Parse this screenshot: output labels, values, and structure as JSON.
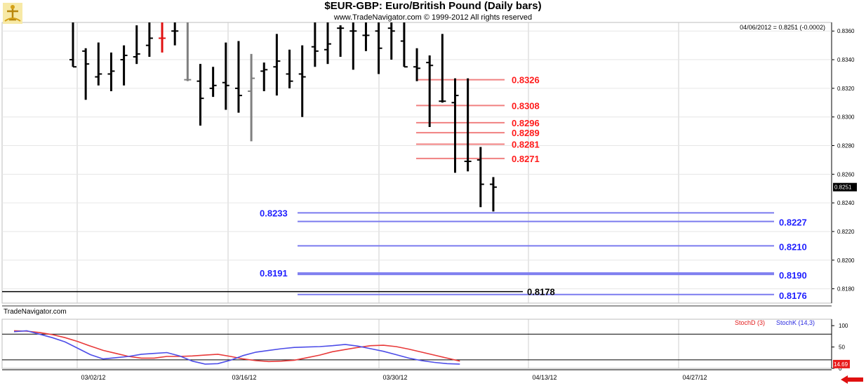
{
  "header": {
    "title": "$EUR-GBP:  Euro/British Pound  (Daily bars)",
    "copyright": "www.TradeNavigator.com © 1999-2012 All rights reserved",
    "last_info": "04/06/2012 = 0.8251 (-0.0002)",
    "watermark": "TradeNavigator.com"
  },
  "icons": {
    "logo": "trade-navigator-logo-icon",
    "scroll": "scroll-left-arrow-icon"
  },
  "colors": {
    "bar": "#000000",
    "bar_down": "#e01010",
    "bar_gray": "#7f7f7f",
    "red_level": "#f08080",
    "red_label": "#ff1a1a",
    "blue_level": "#7b7bef",
    "blue_label": "#1f1fff",
    "stoch_d": "#e83a3a",
    "stoch_k": "#4d4de8"
  },
  "chart_data": [
    {
      "type": "ohlc",
      "title": "$EUR-GBP:  Euro/British Pound  (Daily bars)",
      "x_ticks": [
        "03/02/12",
        "03/16/12",
        "03/30/12",
        "04/13/12",
        "04/27/12"
      ],
      "y_ticks": [
        "0.8360",
        "0.8340",
        "0.8320",
        "0.8300",
        "0.8280",
        "0.8260",
        "0.8240",
        "0.8220",
        "0.8200",
        "0.8180"
      ],
      "ylim": [
        0.817,
        0.8366
      ],
      "last_price_label": "0.8251",
      "bars": [
        {
          "high": 0.8366,
          "low": 0.8335,
          "open": 0.834,
          "close": 0.8335
        },
        {
          "high": 0.8348,
          "low": 0.8312,
          "open": 0.8346,
          "close": 0.8337
        },
        {
          "high": 0.8352,
          "low": 0.8322,
          "open": 0.8328,
          "close": 0.833
        },
        {
          "high": 0.8345,
          "low": 0.8318,
          "open": 0.833,
          "close": 0.8332
        },
        {
          "high": 0.835,
          "low": 0.8322,
          "open": 0.834,
          "close": 0.8343
        },
        {
          "high": 0.8364,
          "low": 0.8337,
          "open": 0.8342,
          "close": 0.8344
        },
        {
          "high": 0.8366,
          "low": 0.8342,
          "open": 0.835,
          "close": 0.8355
        },
        {
          "high": 0.8366,
          "low": 0.8345,
          "open": 0.8355,
          "close": 0.8355,
          "color": "down"
        },
        {
          "high": 0.8366,
          "low": 0.835,
          "open": 0.836,
          "close": 0.836
        },
        {
          "high": 0.8366,
          "low": 0.8325,
          "open": 0.8326,
          "close": 0.8326,
          "color": "gray"
        },
        {
          "high": 0.8337,
          "low": 0.8294,
          "open": 0.8325,
          "close": 0.8313
        },
        {
          "high": 0.8335,
          "low": 0.8314,
          "open": 0.832,
          "close": 0.8322
        },
        {
          "high": 0.8352,
          "low": 0.8305,
          "open": 0.8324,
          "close": 0.8322
        },
        {
          "high": 0.8353,
          "low": 0.8303,
          "open": 0.832,
          "close": 0.8315
        },
        {
          "high": 0.8344,
          "low": 0.8283,
          "open": 0.8318,
          "close": 0.8327,
          "color": "gray"
        },
        {
          "high": 0.8338,
          "low": 0.8318,
          "open": 0.8332,
          "close": 0.8333
        },
        {
          "high": 0.8358,
          "low": 0.8315,
          "open": 0.8335,
          "close": 0.8339
        },
        {
          "high": 0.8347,
          "low": 0.832,
          "open": 0.833,
          "close": 0.8325
        },
        {
          "high": 0.835,
          "low": 0.83,
          "open": 0.833,
          "close": 0.8328
        },
        {
          "high": 0.8366,
          "low": 0.8335,
          "open": 0.8349,
          "close": 0.8346
        },
        {
          "high": 0.8366,
          "low": 0.8337,
          "open": 0.8347,
          "close": 0.8351
        },
        {
          "high": 0.8364,
          "low": 0.8342,
          "open": 0.8362,
          "close": 0.8362
        },
        {
          "high": 0.8366,
          "low": 0.8333,
          "open": 0.836,
          "close": 0.836
        },
        {
          "high": 0.8366,
          "low": 0.8346,
          "open": 0.8357,
          "close": 0.8357
        },
        {
          "high": 0.8366,
          "low": 0.833,
          "open": 0.836,
          "close": 0.8348
        },
        {
          "high": 0.8366,
          "low": 0.834,
          "open": 0.8362,
          "close": 0.836
        },
        {
          "high": 0.8366,
          "low": 0.8335,
          "open": 0.8353,
          "close": 0.8335
        },
        {
          "high": 0.8348,
          "low": 0.8325,
          "open": 0.8335,
          "close": 0.8334
        },
        {
          "high": 0.8343,
          "low": 0.8293,
          "open": 0.8338,
          "close": 0.8336
        },
        {
          "high": 0.8358,
          "low": 0.831,
          "open": 0.8311,
          "close": 0.8311
        },
        {
          "high": 0.8327,
          "low": 0.8261,
          "open": 0.831,
          "close": 0.8315
        },
        {
          "high": 0.8327,
          "low": 0.8262,
          "open": 0.8269,
          "close": 0.8269
        },
        {
          "high": 0.8279,
          "low": 0.8237,
          "open": 0.827,
          "close": 0.8253
        },
        {
          "high": 0.8258,
          "low": 0.8234,
          "open": 0.8253,
          "close": 0.8251
        }
      ],
      "red_levels": [
        "0.8326",
        "0.8308",
        "0.8296",
        "0.8289",
        "0.8281",
        "0.8271"
      ],
      "blue_levels": [
        {
          "value": "0.8233",
          "side": "left"
        },
        {
          "value": "0.8227",
          "side": "right"
        },
        {
          "value": "0.8210",
          "side": "right"
        },
        {
          "value": "0.8191",
          "side": "left"
        },
        {
          "value": "0.8190",
          "side": "right"
        },
        {
          "value": "0.8176",
          "side": "right"
        }
      ],
      "black_level": "0.8178"
    },
    {
      "type": "line",
      "title": "",
      "y_ticks": [
        "100",
        "50",
        "0"
      ],
      "ylim": [
        0,
        115
      ],
      "series": [
        {
          "name": "StochD (3)",
          "color": "#e83a3a",
          "values": [
            88,
            87,
            84,
            79,
            72,
            63,
            52,
            42,
            35,
            28,
            24,
            24,
            28,
            28,
            29,
            31,
            33,
            28,
            22,
            18,
            16,
            17,
            19,
            25,
            31,
            39,
            44,
            49,
            53,
            54,
            51,
            45,
            38,
            31,
            24,
            17
          ]
        },
        {
          "name": "StochK (14,3)",
          "color": "#4d4de8",
          "values": [
            86,
            88,
            80,
            72,
            62,
            47,
            32,
            22,
            25,
            28,
            33,
            35,
            37,
            29,
            17,
            10,
            11,
            19,
            30,
            38,
            42,
            46,
            49,
            50,
            51,
            53,
            56,
            52,
            46,
            40,
            32,
            24,
            18,
            14,
            11,
            10
          ]
        }
      ],
      "last_value_label": "14.69"
    }
  ]
}
